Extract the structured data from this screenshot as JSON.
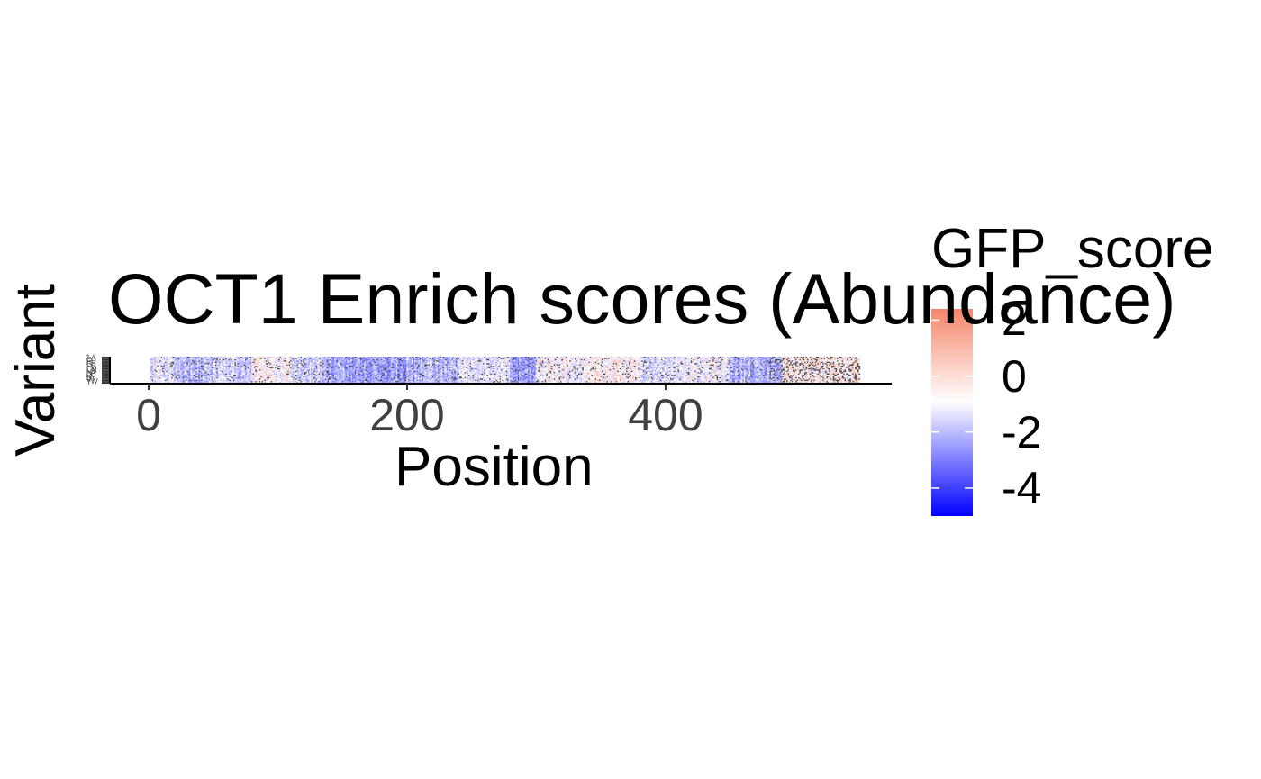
{
  "chart_data": {
    "type": "heatmap",
    "title": "OCT1 Enrich scores (Abundance)",
    "xlabel": "Position",
    "ylabel": "Variant",
    "xlim": [
      -30,
      575
    ],
    "x_ticks": [
      0,
      200,
      400
    ],
    "variants": [
      "*",
      "A",
      "C",
      "D",
      "E",
      "F",
      "G",
      "H",
      "I",
      "K",
      "L",
      "M",
      "N",
      "P",
      "Q",
      "R",
      "S",
      "T",
      "V",
      "W",
      "Y"
    ],
    "positions": [
      1,
      550
    ],
    "legend": {
      "title": "GFP_score",
      "ticks": [
        2,
        0,
        -2,
        -4
      ],
      "range": [
        -5,
        2.4
      ],
      "colors": {
        "low": "#0000ff",
        "mid": "#ffffff",
        "high": "#f4866a"
      }
    },
    "missing_color": "#4d4d4d",
    "segments": [
      {
        "from": 1,
        "to": 20,
        "mean": -0.5
      },
      {
        "from": 20,
        "to": 50,
        "mean": -1.3
      },
      {
        "from": 50,
        "to": 80,
        "mean": -1.0
      },
      {
        "from": 80,
        "to": 110,
        "mean": 0.1
      },
      {
        "from": 110,
        "to": 135,
        "mean": -0.8
      },
      {
        "from": 135,
        "to": 165,
        "mean": -1.6
      },
      {
        "from": 165,
        "to": 200,
        "mean": -1.9
      },
      {
        "from": 200,
        "to": 240,
        "mean": -1.4
      },
      {
        "from": 240,
        "to": 280,
        "mean": -0.4
      },
      {
        "from": 280,
        "to": 300,
        "mean": -2.0
      },
      {
        "from": 300,
        "to": 340,
        "mean": -0.1
      },
      {
        "from": 340,
        "to": 380,
        "mean": 0.2
      },
      {
        "from": 380,
        "to": 420,
        "mean": -0.6
      },
      {
        "from": 420,
        "to": 450,
        "mean": -0.3
      },
      {
        "from": 450,
        "to": 490,
        "mean": -1.5
      },
      {
        "from": 490,
        "to": 550,
        "mean": 0.3
      }
    ]
  }
}
